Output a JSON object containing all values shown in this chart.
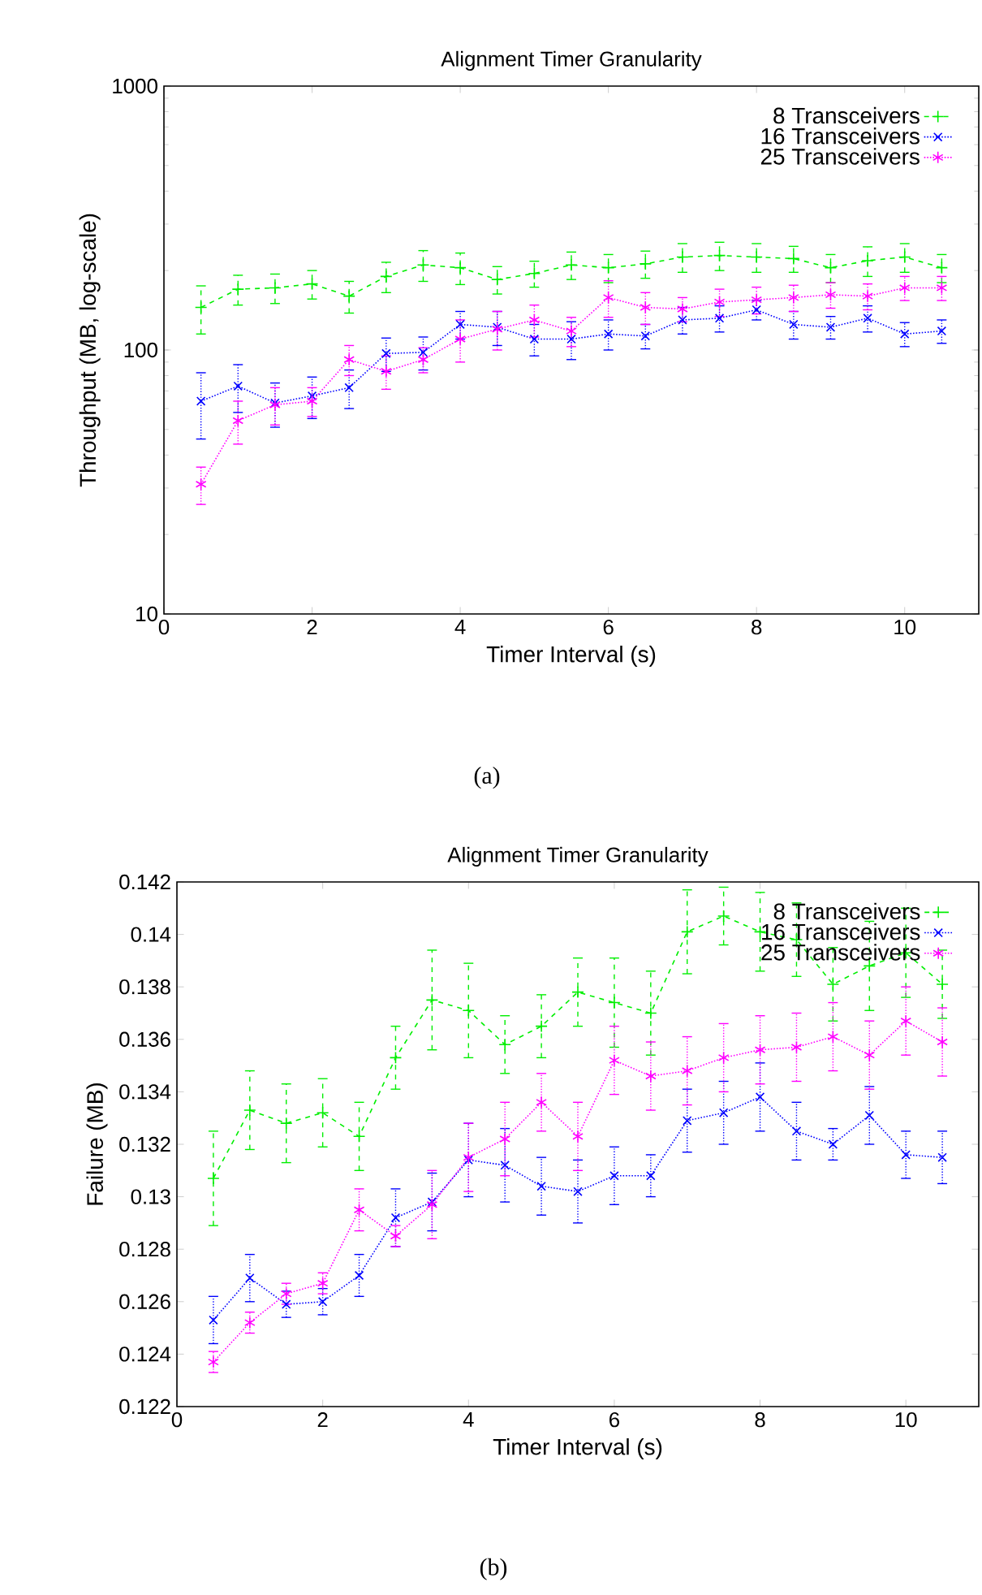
{
  "chart_data": [
    {
      "type": "line",
      "title": "Alignment Timer Granularity",
      "xlabel": "Timer Interval (s)",
      "ylabel": "Throughput (MB, log-scale)",
      "log": "y",
      "legend": "top right",
      "x": [
        0.5,
        1,
        1.5,
        2,
        2.5,
        3,
        3.5,
        4,
        4.5,
        5,
        5.5,
        6,
        6.5,
        7,
        7.5,
        8,
        8.5,
        9,
        9.5,
        10,
        10.5
      ],
      "xlim": [
        0,
        11
      ],
      "xticks": [
        0,
        2,
        4,
        6,
        8,
        10
      ],
      "ylim": [
        10,
        1000
      ],
      "yticks": [
        10,
        100,
        1000
      ],
      "series": [
        {
          "name": "8 Transceivers",
          "color": "#00ee00",
          "line_style": "dashed",
          "marker": "cross",
          "values": [
            145,
            170,
            172,
            178,
            160,
            190,
            210,
            205,
            185,
            195,
            210,
            205,
            212,
            225,
            228,
            225,
            222,
            205,
            218,
            225,
            205
          ],
          "errors": [
            30,
            22,
            22,
            22,
            22,
            25,
            28,
            28,
            22,
            22,
            25,
            25,
            25,
            28,
            28,
            28,
            25,
            25,
            28,
            28,
            25
          ]
        },
        {
          "name": "16 Transceivers",
          "color": "#0000ff",
          "line_style": "dotted",
          "marker": "cross",
          "values": [
            64,
            73,
            63,
            67,
            72,
            97,
            98,
            125,
            122,
            110,
            110,
            115,
            113,
            130,
            132,
            142,
            125,
            122,
            132,
            115,
            118
          ],
          "errors": [
            18,
            15,
            12,
            12,
            12,
            14,
            14,
            15,
            18,
            15,
            18,
            15,
            12,
            15,
            15,
            12,
            15,
            12,
            15,
            12,
            12
          ]
        },
        {
          "name": "25 Transceivers",
          "color": "#ff00ff",
          "line_style": "dotted",
          "marker": "cross",
          "values": [
            31,
            54,
            62,
            64,
            92,
            83,
            92,
            110,
            120,
            130,
            118,
            158,
            145,
            143,
            152,
            155,
            158,
            162,
            160,
            172,
            172
          ],
          "errors": [
            5,
            10,
            10,
            8,
            12,
            12,
            10,
            20,
            20,
            18,
            15,
            25,
            20,
            15,
            18,
            18,
            18,
            18,
            18,
            18,
            18
          ]
        }
      ],
      "annotations": [
        "(a)"
      ]
    },
    {
      "type": "line",
      "title": "Alignment Timer Granularity",
      "xlabel": "Timer Interval (s)",
      "ylabel": "Failure (MB)",
      "legend": "top right",
      "x": [
        0.5,
        1,
        1.5,
        2,
        2.5,
        3,
        3.5,
        4,
        4.5,
        5,
        5.5,
        6,
        6.5,
        7,
        7.5,
        8,
        8.5,
        9,
        9.5,
        10,
        10.5
      ],
      "xlim": [
        0,
        11
      ],
      "xticks": [
        0,
        2,
        4,
        6,
        8,
        10
      ],
      "ylim": [
        0.122,
        0.142
      ],
      "yticks": [
        0.122,
        0.124,
        0.126,
        0.128,
        0.13,
        0.132,
        0.134,
        0.136,
        0.138,
        0.14,
        0.142
      ],
      "series": [
        {
          "name": "8 Transceivers",
          "color": "#00ee00",
          "line_style": "dashed",
          "marker": "cross",
          "values": [
            0.1307,
            0.1333,
            0.1328,
            0.1332,
            0.1323,
            0.1353,
            0.1375,
            0.1371,
            0.1358,
            0.1365,
            0.1378,
            0.1374,
            0.137,
            0.1401,
            0.1407,
            0.1401,
            0.1398,
            0.1381,
            0.1388,
            0.1393,
            0.1381
          ],
          "errors": [
            0.0018,
            0.0015,
            0.0015,
            0.0013,
            0.0013,
            0.0012,
            0.0019,
            0.0018,
            0.0011,
            0.0012,
            0.0013,
            0.0017,
            0.0016,
            0.0016,
            0.0011,
            0.0015,
            0.0014,
            0.0014,
            0.0017,
            0.0017,
            0.0013
          ]
        },
        {
          "name": "16 Transceivers",
          "color": "#0000ff",
          "line_style": "dotted",
          "marker": "cross",
          "values": [
            0.1253,
            0.1269,
            0.1259,
            0.126,
            0.127,
            0.1292,
            0.1298,
            0.1314,
            0.1312,
            0.1304,
            0.1302,
            0.1308,
            0.1308,
            0.1329,
            0.1332,
            0.1338,
            0.1325,
            0.132,
            0.1331,
            0.1316,
            0.1315
          ],
          "errors": [
            0.0009,
            0.0009,
            0.0005,
            0.0005,
            0.0008,
            0.0011,
            0.0011,
            0.0014,
            0.0014,
            0.0011,
            0.0012,
            0.0011,
            0.0008,
            0.0012,
            0.0012,
            0.0013,
            0.0011,
            0.0006,
            0.0011,
            0.0009,
            0.001
          ]
        },
        {
          "name": "25 Transceivers",
          "color": "#ff00ff",
          "line_style": "dotted",
          "marker": "cross",
          "values": [
            0.1237,
            0.1252,
            0.1263,
            0.1267,
            0.1295,
            0.1285,
            0.1297,
            0.1315,
            0.1322,
            0.1336,
            0.1323,
            0.1352,
            0.1346,
            0.1348,
            0.1353,
            0.1356,
            0.1357,
            0.1361,
            0.1354,
            0.1367,
            0.1359
          ],
          "errors": [
            0.0004,
            0.0004,
            0.0004,
            0.0004,
            0.0008,
            0.0004,
            0.0013,
            0.0013,
            0.0014,
            0.0011,
            0.0013,
            0.0013,
            0.0013,
            0.0013,
            0.0013,
            0.0013,
            0.0013,
            0.0013,
            0.0013,
            0.0013,
            0.0013
          ]
        }
      ],
      "annotations": [
        "(b)"
      ]
    }
  ]
}
